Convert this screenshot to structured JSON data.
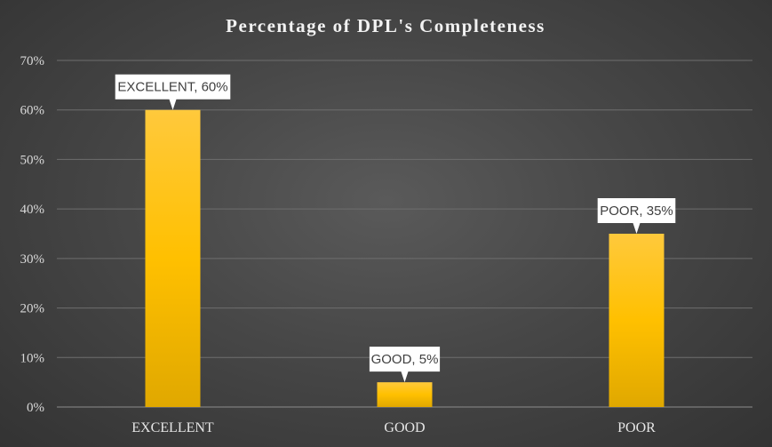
{
  "chart_data": {
    "type": "bar",
    "title": "Percentage of DPL's Completeness",
    "xlabel": "",
    "ylabel": "",
    "categories": [
      "EXCELLENT",
      "GOOD",
      "POOR"
    ],
    "values": [
      60,
      5,
      35
    ],
    "data_labels": [
      "EXCELLENT, 60%",
      "GOOD, 5%",
      "POOR, 35%"
    ],
    "ylim": [
      0,
      70
    ],
    "y_ticks": [
      0,
      10,
      20,
      30,
      40,
      50,
      60,
      70
    ],
    "y_tick_labels": [
      "0%",
      "10%",
      "20%",
      "30%",
      "40%",
      "50%",
      "60%",
      "70%"
    ],
    "grid": true,
    "legend": "none",
    "colors": {
      "bar_top": "#ffc93c",
      "bar_mid": "#ffc000",
      "bar_bottom": "#e0a800",
      "label_box": "#ffffff",
      "background": "#474747"
    }
  }
}
